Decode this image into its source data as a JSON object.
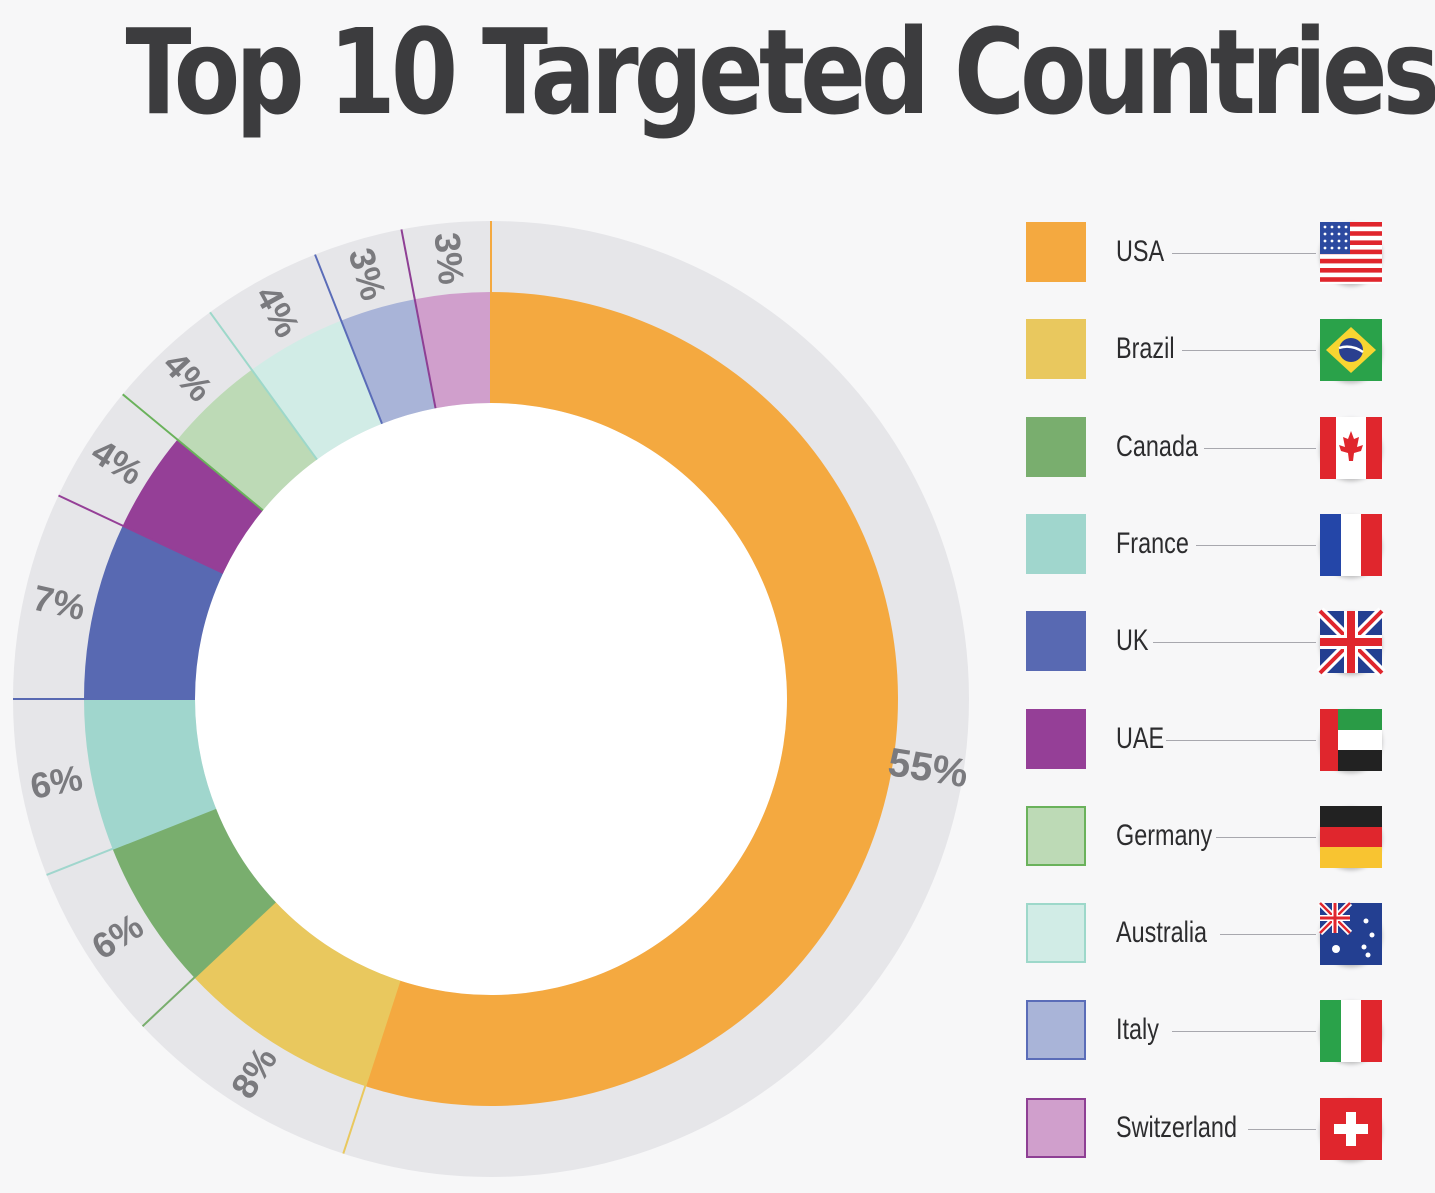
{
  "title": "Top 10 Targeted Countries",
  "chart_data": {
    "type": "donut",
    "title": "Top 10 Targeted Countries",
    "series": [
      {
        "name": "USA",
        "value": 55,
        "label": "55%",
        "color": "#f4a940",
        "border": "#f4a940",
        "flag": "usa-flag"
      },
      {
        "name": "Brazil",
        "value": 8,
        "label": "8%",
        "color": "#e9c85e",
        "border": "#e9c85e",
        "flag": "brazil-flag"
      },
      {
        "name": "Canada",
        "value": 6,
        "label": "6%",
        "color": "#79ae6e",
        "border": "#79ae6e",
        "flag": "canada-flag"
      },
      {
        "name": "France",
        "value": 6,
        "label": "6%",
        "color": "#a0d6cd",
        "border": "#a0d6cd",
        "flag": "france-flag"
      },
      {
        "name": "UK",
        "value": 7,
        "label": "7%",
        "color": "#5869b2",
        "border": "#5869b2",
        "flag": "uk-flag"
      },
      {
        "name": "UAE",
        "value": 4,
        "label": "4%",
        "color": "#953f97",
        "border": "#953f97",
        "flag": "uae-flag"
      },
      {
        "name": "Germany",
        "value": 4,
        "label": "4%",
        "color": "#bddab6",
        "border": "#6ab25b",
        "flag": "germany-flag"
      },
      {
        "name": "Australia",
        "value": 4,
        "label": "4%",
        "color": "#d1ece6",
        "border": "#9dd8ca",
        "flag": "australia-flag"
      },
      {
        "name": "Italy",
        "value": 3,
        "label": "3%",
        "color": "#a9b4d8",
        "border": "#5a6cb8",
        "flag": "italy-flag"
      },
      {
        "name": "Switzerland",
        "value": 3,
        "label": "3%",
        "color": "#d09fcc",
        "border": "#8e3f94",
        "flag": "switzerland-flag"
      }
    ],
    "legend_position": "right"
  }
}
